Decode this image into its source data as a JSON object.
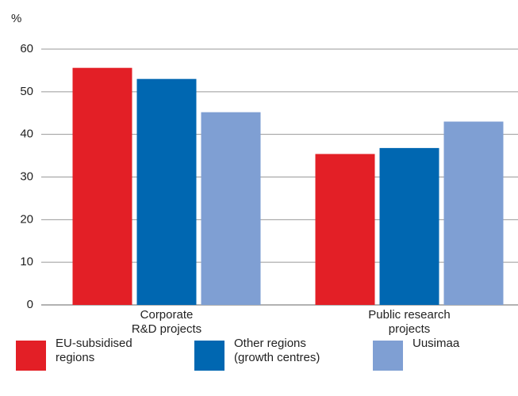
{
  "chart_data": {
    "type": "bar",
    "y_label": "%",
    "categories": [
      "Corporate\nR&D projects",
      "Public research\nprojects"
    ],
    "series": [
      {
        "name": "EU-subsidised\nregions",
        "color": "#e31f26",
        "values": [
          55.6,
          35.4
        ]
      },
      {
        "name": "Other regions\n(growth centres)",
        "color": "#0067b1",
        "values": [
          53,
          36.8
        ]
      },
      {
        "name": "Uusimaa",
        "color": "#7f9fd3",
        "values": [
          45.2,
          43
        ]
      }
    ],
    "ylim": [
      0,
      60
    ],
    "yticks": [
      0,
      10,
      20,
      30,
      40,
      50,
      60
    ],
    "grid": true,
    "legend": "bottom"
  }
}
